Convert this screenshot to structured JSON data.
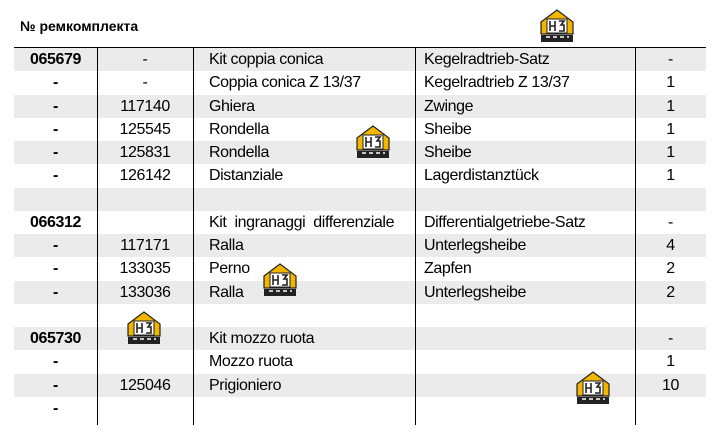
{
  "header": {
    "title": "№ ремкомплекта"
  },
  "table": {
    "rows": [
      {
        "code": "065679",
        "number": "-",
        "it": "Kit coppia conica",
        "de": "Kegelradtrieb-Satz",
        "qty": "-"
      },
      {
        "code": "-",
        "number": "-",
        "it": "Coppia conica Z 13/37",
        "de": "Kegelradtrieb Z 13/37",
        "qty": "1"
      },
      {
        "code": "-",
        "number": "117140",
        "it": "Ghiera",
        "de": "Zwinge",
        "qty": "1"
      },
      {
        "code": "-",
        "number": "125545",
        "it": "Rondella",
        "de": "Sheibe",
        "qty": "1"
      },
      {
        "code": "-",
        "number": "125831",
        "it": "Rondella",
        "de": "Sheibe",
        "qty": "1"
      },
      {
        "code": "-",
        "number": "126142",
        "it": "Distanziale",
        "de": "Lagerdistanztück",
        "qty": "1"
      },
      {},
      {
        "code": "066312",
        "it": "Kit ingranaggi differenziale",
        "de": "Differentialgetriebe-Satz",
        "qty": "-"
      },
      {
        "code": "-",
        "number": "117171",
        "it": "Ralla",
        "de": "Unterlegsheibe",
        "qty": "4"
      },
      {
        "code": "-",
        "number": "133035",
        "it": "Perno",
        "de": "Zapfen",
        "qty": "2"
      },
      {
        "code": "-",
        "number": "133036",
        "it": "Ralla",
        "de": "Unterlegsheibe",
        "qty": "2"
      },
      {},
      {
        "code": "065730",
        "it": "Kit mozzo ruota",
        "qty": "-"
      },
      {
        "code": "-",
        "it": "Mozzo ruota",
        "qty": "1"
      },
      {
        "code": "-",
        "number": "125046",
        "it": "Prigioniero",
        "qty": "10"
      },
      {
        "code": "-"
      }
    ]
  }
}
